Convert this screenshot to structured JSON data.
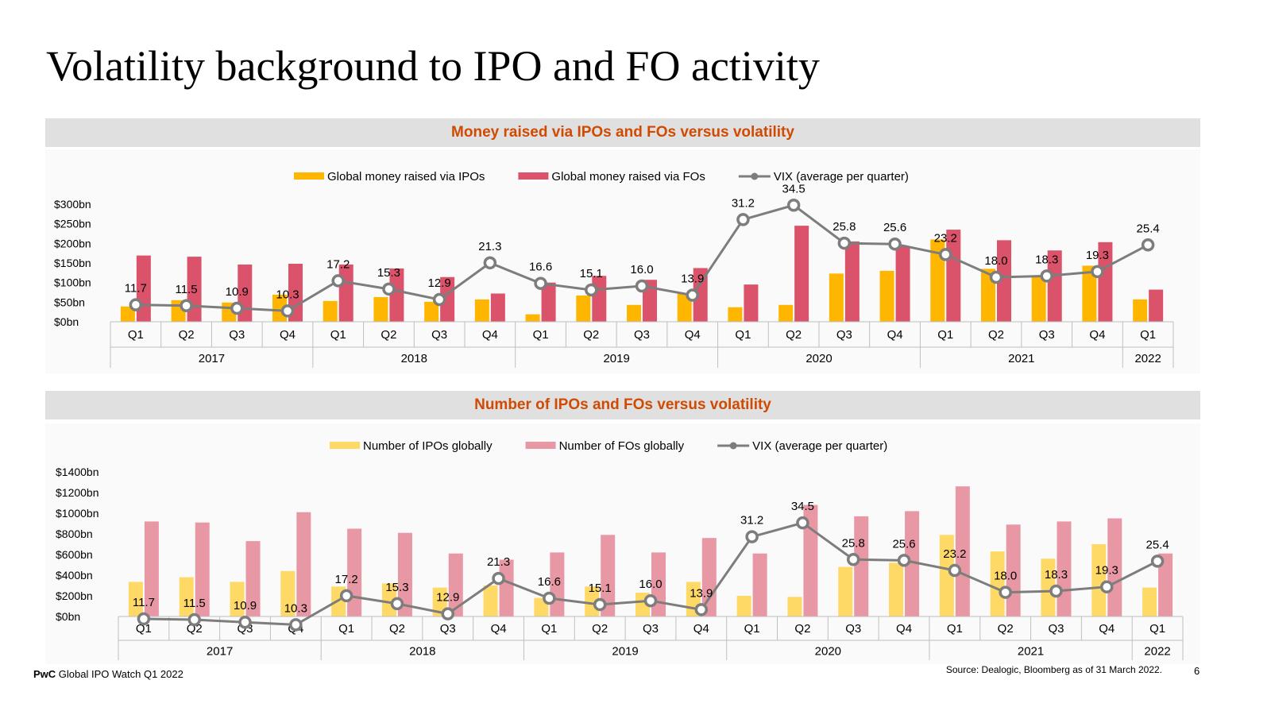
{
  "page": {
    "title": "Volatility background to IPO and FO activity",
    "footer_brand": "PwC",
    "footer_text": "Global IPO Watch Q1 2022",
    "source": "Source: Dealogic, Bloomberg as of 31 March 2022.",
    "page_number": "6"
  },
  "chart_data": [
    {
      "type": "bar",
      "title": "Money raised via IPOs and FOs versus volatility",
      "categories": [
        "Q1",
        "Q2",
        "Q3",
        "Q4",
        "Q1",
        "Q2",
        "Q3",
        "Q4",
        "Q1",
        "Q2",
        "Q3",
        "Q4",
        "Q1",
        "Q2",
        "Q3",
        "Q4",
        "Q1",
        "Q2",
        "Q3",
        "Q4",
        "Q1"
      ],
      "years": [
        {
          "label": "2017",
          "count": 4
        },
        {
          "label": "2018",
          "count": 4
        },
        {
          "label": "2019",
          "count": 4
        },
        {
          "label": "2020",
          "count": 4
        },
        {
          "label": "2021",
          "count": 4
        },
        {
          "label": "2022",
          "count": 1
        }
      ],
      "y_ticks": [
        "$0bn",
        "$50bn",
        "$100bn",
        "$150bn",
        "$200bn",
        "$250bn",
        "$300bn"
      ],
      "ylim": [
        0,
        300
      ],
      "series": [
        {
          "name": "Global money raised via IPOs",
          "kind": "bar",
          "color": "#ffb600",
          "values": [
            39,
            55,
            49,
            69,
            53,
            63,
            51,
            57,
            19,
            67,
            43,
            73,
            37,
            43,
            123,
            130,
            210,
            135,
            117,
            143,
            57
          ]
        },
        {
          "name": "Global money raised via FOs",
          "kind": "bar",
          "color": "#db536a",
          "values": [
            169,
            166,
            146,
            148,
            146,
            136,
            114,
            72,
            100,
            117,
            107,
            137,
            95,
            245,
            205,
            193,
            235,
            208,
            182,
            203,
            82
          ]
        },
        {
          "name": "VIX (average per quarter)",
          "kind": "line",
          "color": "#7d7d7d",
          "values": [
            11.7,
            11.5,
            10.9,
            10.3,
            17.2,
            15.3,
            12.9,
            21.3,
            16.6,
            15.1,
            16.0,
            13.9,
            31.2,
            34.5,
            25.8,
            25.6,
            23.2,
            18.0,
            18.3,
            19.3,
            25.4
          ],
          "labels": [
            "11.7",
            "11.5",
            "10.9",
            "10.3",
            "17.2",
            "15.3",
            "12.9",
            "21.3",
            "16.6",
            "15.1",
            "16.0",
            "13.9",
            "31.2",
            "34.5",
            "25.8",
            "25.6",
            "23.2",
            "18.0",
            "18.3",
            "19.3",
            "25.4"
          ]
        }
      ],
      "legend": "top-center"
    },
    {
      "type": "bar",
      "title": "Number of IPOs and FOs versus volatility",
      "categories": [
        "Q1",
        "Q2",
        "Q3",
        "Q4",
        "Q1",
        "Q2",
        "Q3",
        "Q4",
        "Q1",
        "Q2",
        "Q3",
        "Q4",
        "Q1",
        "Q2",
        "Q3",
        "Q4",
        "Q1",
        "Q2",
        "Q3",
        "Q4",
        "Q1"
      ],
      "years": [
        {
          "label": "2017",
          "count": 4
        },
        {
          "label": "2018",
          "count": 4
        },
        {
          "label": "2019",
          "count": 4
        },
        {
          "label": "2020",
          "count": 4
        },
        {
          "label": "2021",
          "count": 4
        },
        {
          "label": "2022",
          "count": 1
        }
      ],
      "y_ticks": [
        "$0bn",
        "$200bn",
        "$400bn",
        "$600bn",
        "$800bn",
        "$1000bn",
        "$1200bn",
        "$1400bn"
      ],
      "ylim": [
        0,
        1400
      ],
      "series": [
        {
          "name": "Number of IPOs globally",
          "kind": "bar",
          "color": "#ffd966",
          "values": [
            335,
            380,
            335,
            440,
            290,
            320,
            280,
            300,
            180,
            290,
            230,
            335,
            200,
            190,
            480,
            520,
            790,
            630,
            560,
            700,
            280
          ]
        },
        {
          "name": "Number of FOs globally",
          "kind": "bar",
          "color": "#e897a5",
          "values": [
            920,
            910,
            730,
            1010,
            850,
            810,
            610,
            550,
            620,
            790,
            620,
            760,
            610,
            1080,
            970,
            1020,
            1260,
            890,
            920,
            950,
            610
          ]
        },
        {
          "name": "VIX (average per quarter)",
          "kind": "line",
          "color": "#7d7d7d",
          "values": [
            11.7,
            11.5,
            10.9,
            10.3,
            17.2,
            15.3,
            12.9,
            21.3,
            16.6,
            15.1,
            16.0,
            13.9,
            31.2,
            34.5,
            25.8,
            25.6,
            23.2,
            18.0,
            18.3,
            19.3,
            25.4
          ],
          "labels": [
            "11.7",
            "11.5",
            "10.9",
            "10.3",
            "17.2",
            "15.3",
            "12.9",
            "21.3",
            "16.6",
            "15.1",
            "16.0",
            "13.9",
            "31.2",
            "34.5",
            "25.8",
            "25.6",
            "23.2",
            "18.0",
            "18.3",
            "19.3",
            "25.4"
          ]
        }
      ],
      "legend": "top-center"
    }
  ]
}
